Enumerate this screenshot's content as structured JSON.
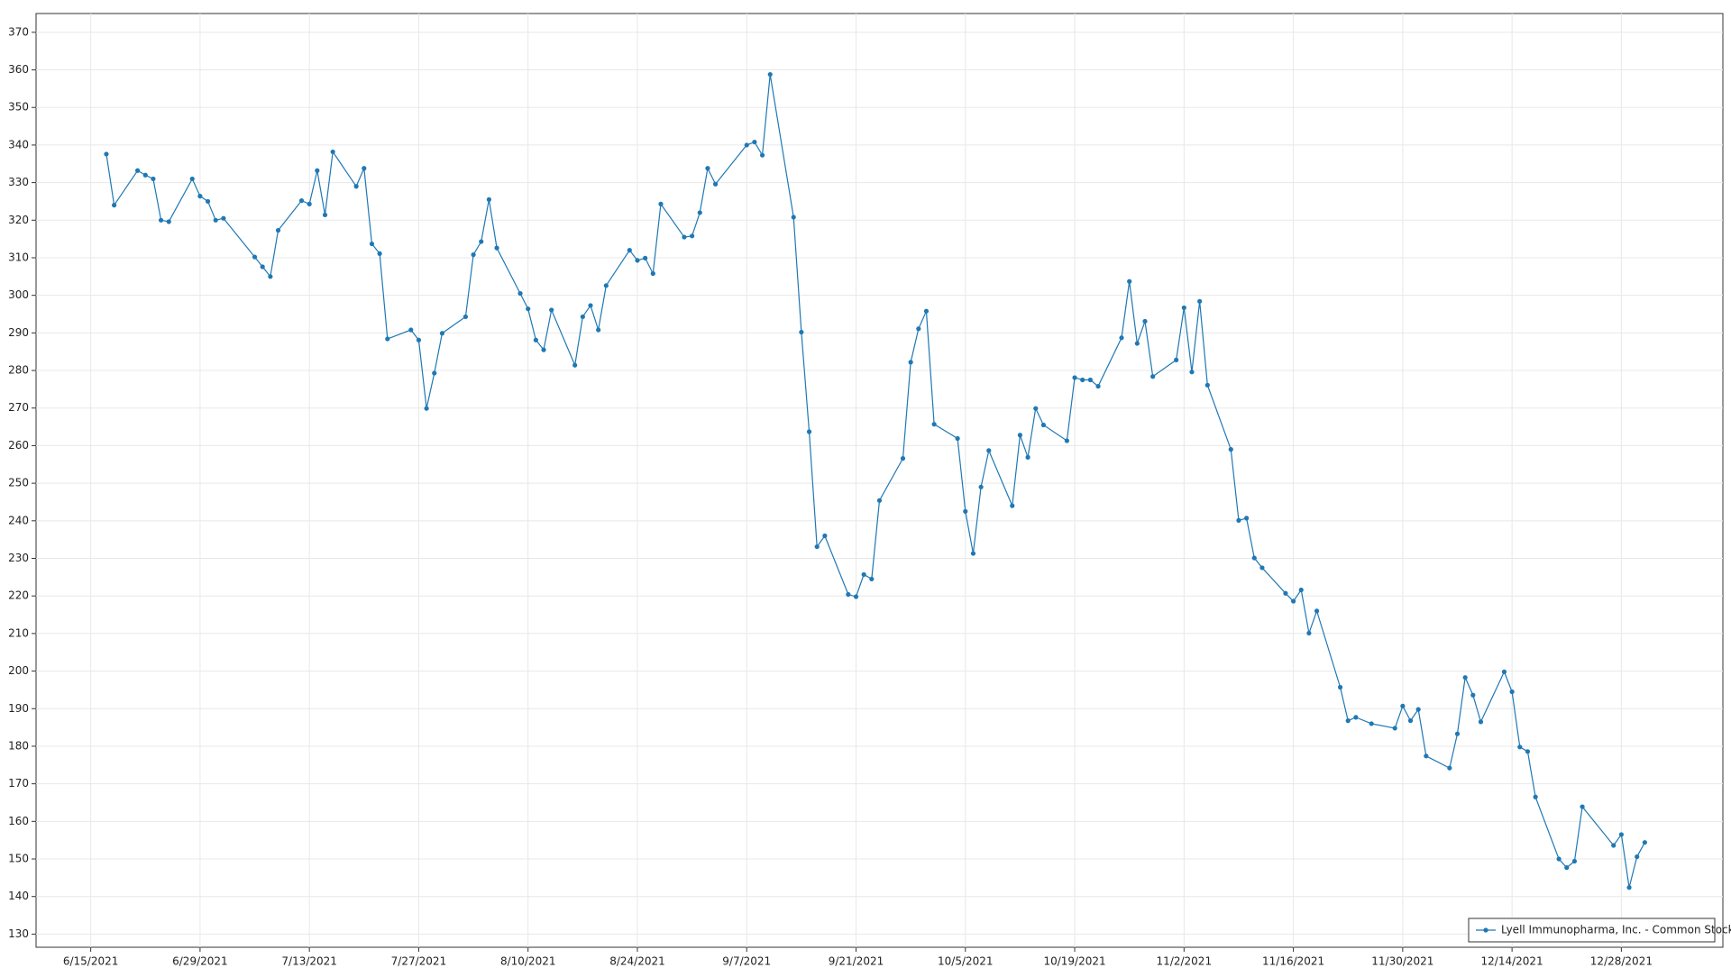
{
  "chart_data": {
    "type": "line",
    "x": [
      "6/17/2021",
      "6/18/2021",
      "6/21/2021",
      "6/22/2021",
      "6/23/2021",
      "6/24/2021",
      "6/25/2021",
      "6/28/2021",
      "6/29/2021",
      "6/30/2021",
      "7/1/2021",
      "7/2/2021",
      "7/6/2021",
      "7/7/2021",
      "7/8/2021",
      "7/9/2021",
      "7/12/2021",
      "7/13/2021",
      "7/14/2021",
      "7/15/2021",
      "7/16/2021",
      "7/19/2021",
      "7/20/2021",
      "7/21/2021",
      "7/22/2021",
      "7/23/2021",
      "7/26/2021",
      "7/27/2021",
      "7/28/2021",
      "7/29/2021",
      "7/30/2021",
      "8/2/2021",
      "8/3/2021",
      "8/4/2021",
      "8/5/2021",
      "8/6/2021",
      "8/9/2021",
      "8/10/2021",
      "8/11/2021",
      "8/12/2021",
      "8/13/2021",
      "8/16/2021",
      "8/17/2021",
      "8/18/2021",
      "8/19/2021",
      "8/20/2021",
      "8/23/2021",
      "8/24/2021",
      "8/25/2021",
      "8/26/2021",
      "8/27/2021",
      "8/30/2021",
      "8/31/2021",
      "9/1/2021",
      "9/2/2021",
      "9/3/2021",
      "9/7/2021",
      "9/8/2021",
      "9/9/2021",
      "9/10/2021",
      "9/13/2021",
      "9/14/2021",
      "9/15/2021",
      "9/16/2021",
      "9/17/2021",
      "9/20/2021",
      "9/21/2021",
      "9/22/2021",
      "9/23/2021",
      "9/24/2021",
      "9/27/2021",
      "9/28/2021",
      "9/29/2021",
      "9/30/2021",
      "10/1/2021",
      "10/4/2021",
      "10/5/2021",
      "10/6/2021",
      "10/7/2021",
      "10/8/2021",
      "10/11/2021",
      "10/12/2021",
      "10/13/2021",
      "10/14/2021",
      "10/15/2021",
      "10/18/2021",
      "10/19/2021",
      "10/20/2021",
      "10/21/2021",
      "10/22/2021",
      "10/25/2021",
      "10/26/2021",
      "10/27/2021",
      "10/28/2021",
      "10/29/2021",
      "11/1/2021",
      "11/2/2021",
      "11/3/2021",
      "11/4/2021",
      "11/5/2021",
      "11/8/2021",
      "11/9/2021",
      "11/10/2021",
      "11/11/2021",
      "11/12/2021",
      "11/15/2021",
      "11/16/2021",
      "11/17/2021",
      "11/18/2021",
      "11/19/2021",
      "11/22/2021",
      "11/23/2021",
      "11/24/2021",
      "11/26/2021",
      "11/29/2021",
      "11/30/2021",
      "12/1/2021",
      "12/2/2021",
      "12/3/2021",
      "12/6/2021",
      "12/7/2021",
      "12/8/2021",
      "12/9/2021",
      "12/10/2021",
      "12/13/2021",
      "12/14/2021",
      "12/15/2021",
      "12/16/2021",
      "12/17/2021",
      "12/20/2021",
      "12/21/2021",
      "12/22/2021",
      "12/23/2021",
      "12/27/2021",
      "12/28/2021",
      "12/29/2021",
      "12/30/2021",
      "12/31/2021"
    ],
    "series": [
      {
        "name": "Lyell Immunopharma, Inc. - Common Stock",
        "color": "#1f78b4",
        "values": [
          337.6,
          324,
          333.2,
          332,
          331,
          320,
          319.6,
          331,
          326.4,
          325,
          320,
          320.5,
          310.2,
          307.6,
          305,
          317.3,
          325.2,
          324.3,
          333.2,
          321.4,
          338.2,
          329,
          333.8,
          313.7,
          311.1,
          288.4,
          290.8,
          288.1,
          269.9,
          279.3,
          289.9,
          294.3,
          310.8,
          314.3,
          325.5,
          312.6,
          300.5,
          296.4,
          288.1,
          285.5,
          296.1,
          281.4,
          294.3,
          297.3,
          290.8,
          302.6,
          312,
          309.3,
          309.9,
          305.8,
          324.3,
          315.5,
          315.8,
          322,
          333.8,
          329.6,
          340,
          340.8,
          337.3,
          358.8,
          320.8,
          290.2,
          263.7,
          233.1,
          236,
          220.4,
          219.8,
          225.7,
          224.5,
          245.4,
          256.6,
          282.2,
          291.1,
          295.8,
          265.7,
          261.9,
          242.5,
          231.3,
          249,
          258.7,
          244,
          262.8,
          256.9,
          269.9,
          265.5,
          261.3,
          278.1,
          277.5,
          277.5,
          275.8,
          288.7,
          303.7,
          287.2,
          293.1,
          278.4,
          282.8,
          296.7,
          279.6,
          298.4,
          276.1,
          259,
          240.1,
          240.7,
          230.1,
          227.5,
          220.7,
          218.6,
          221.6,
          210.1,
          216,
          195.7,
          186.8,
          187.7,
          186,
          184.8,
          190.7,
          186.8,
          189.8,
          177.4,
          174.2,
          183.3,
          198.3,
          193.6,
          186.5,
          199.8,
          194.5,
          179.8,
          178.6,
          166.5,
          150,
          147.7,
          149.4,
          163.9,
          153.6,
          156.5,
          142.4,
          150.6,
          154.4
        ]
      }
    ],
    "xlim": [
      "6/8/2021",
      "1/10/2022"
    ],
    "xticks": [
      "6/15/2021",
      "6/29/2021",
      "7/13/2021",
      "7/27/2021",
      "8/10/2021",
      "8/24/2021",
      "9/7/2021",
      "9/21/2021",
      "10/5/2021",
      "10/19/2021",
      "11/2/2021",
      "11/16/2021",
      "11/30/2021",
      "12/14/2021",
      "12/28/2021"
    ],
    "ylim": [
      126.5,
      375
    ],
    "yticks": [
      130,
      140,
      150,
      160,
      170,
      180,
      190,
      200,
      210,
      220,
      230,
      240,
      250,
      260,
      270,
      280,
      290,
      300,
      310,
      320,
      330,
      340,
      350,
      360,
      370
    ],
    "grid": true,
    "legend": "bottom-right"
  }
}
